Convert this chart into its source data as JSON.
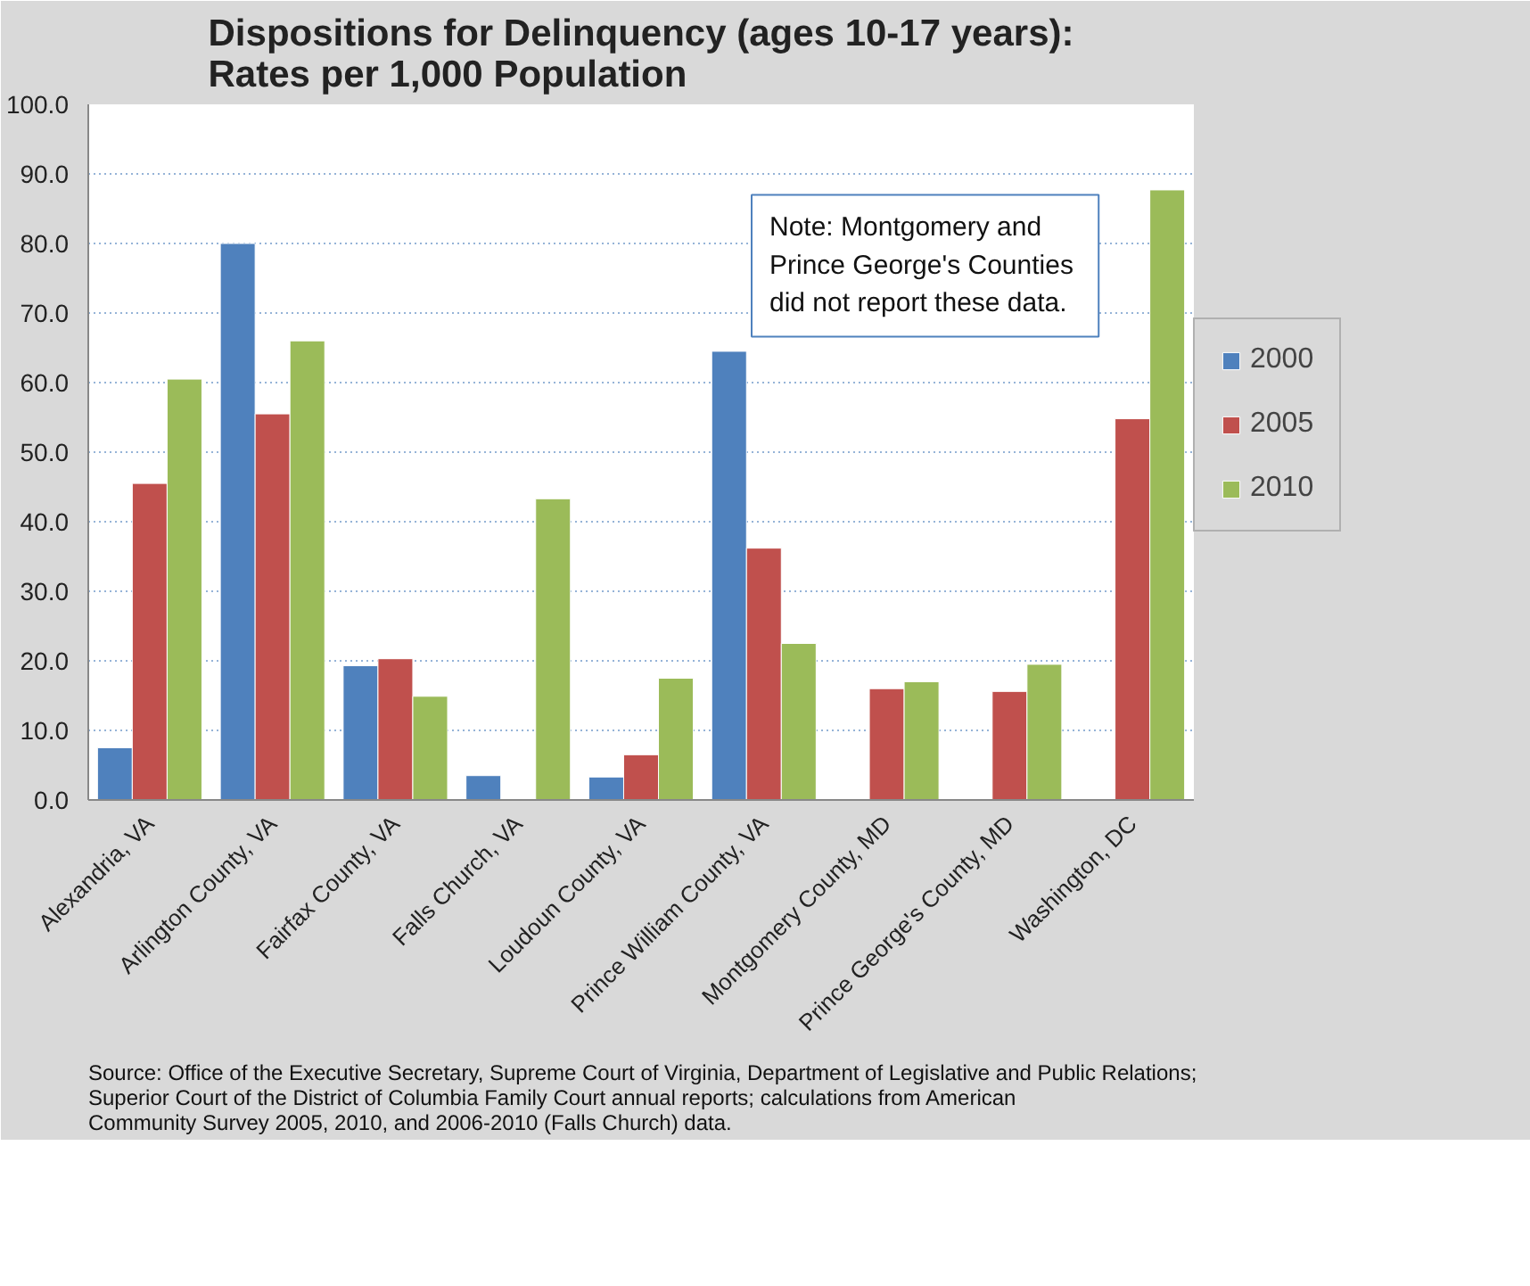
{
  "chart_data": {
    "type": "bar",
    "title": "Dispositions for Delinquency (ages 10-17 years):\nRates per 1,000 Population",
    "categories": [
      "Alexandria, VA",
      "Arlington County, VA",
      "Fairfax County, VA",
      "Falls Church, VA",
      "Loudoun County, VA",
      "Prince William County, VA",
      "Montgomery County, MD",
      "Prince George's County, MD",
      "Washington, DC"
    ],
    "series": [
      {
        "name": "2000",
        "color": "#4f81bd",
        "values": [
          7.5,
          80.0,
          19.3,
          3.5,
          3.3,
          64.5,
          null,
          null,
          null
        ]
      },
      {
        "name": "2005",
        "color": "#c0504d",
        "values": [
          45.5,
          55.5,
          20.3,
          null,
          6.5,
          36.2,
          16.0,
          15.6,
          54.8
        ]
      },
      {
        "name": "2010",
        "color": "#9bbb59",
        "values": [
          60.5,
          66.0,
          14.9,
          43.3,
          17.5,
          22.5,
          17.0,
          19.5,
          87.7
        ]
      }
    ],
    "ylim": [
      0,
      100
    ],
    "yticks": [
      {
        "value": 0,
        "label": "0.0"
      },
      {
        "value": 10,
        "label": "10.0"
      },
      {
        "value": 20,
        "label": "20.0"
      },
      {
        "value": 30,
        "label": "30.0"
      },
      {
        "value": 40,
        "label": "40.0"
      },
      {
        "value": 50,
        "label": "50.0"
      },
      {
        "value": 60,
        "label": "60.0"
      },
      {
        "value": 70,
        "label": "70.0"
      },
      {
        "value": 80,
        "label": "80.0"
      },
      {
        "value": 90,
        "label": "90.0"
      },
      {
        "value": 100,
        "label": "100.0"
      }
    ],
    "grid": "y",
    "legend": "right",
    "annotations": [
      "Note: Montgomery and\nPrince  George's Counties\ndid not report these data.",
      "Source: Office of the Executive Secretary, Supreme Court of Virginia, Department of Legislative and Public Relations;\nSuperior Court of the District of Columbia Family Court annual reports; calculations from American\nCommunity Survey 2005, 2010, and 2006-2010  (Falls Church) data."
    ]
  }
}
